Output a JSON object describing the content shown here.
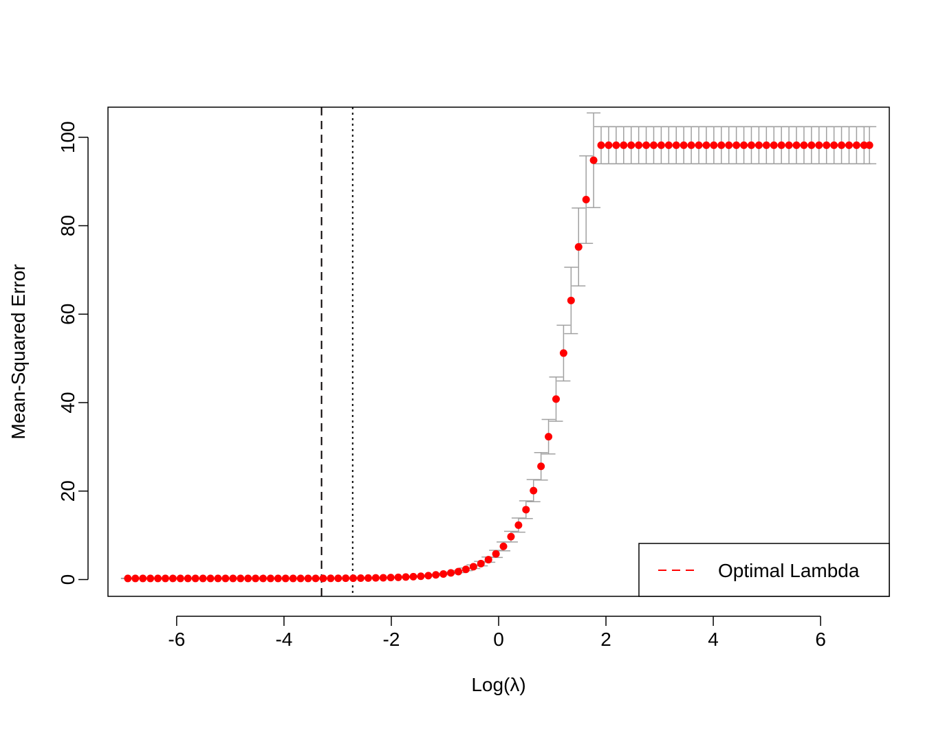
{
  "chart_data": {
    "type": "scatter",
    "title": "",
    "xlabel": "Log(λ)",
    "ylabel": "Mean-Squared Error",
    "xlim": [
      -7.28,
      7.28
    ],
    "ylim": [
      -3.8,
      106.8
    ],
    "x_ticks": [
      -6,
      -4,
      -2,
      0,
      2,
      4,
      6
    ],
    "y_ticks": [
      0,
      20,
      40,
      60,
      80,
      100
    ],
    "grid": false,
    "legend": {
      "position": "bottom-right",
      "entries": [
        {
          "label": "Optimal Lambda",
          "color": "#ff0000",
          "line_style": "dashed"
        }
      ]
    },
    "vlines": [
      {
        "x": -3.3,
        "color": "#ff0000",
        "style": "dashed",
        "label": "Optimal Lambda"
      },
      {
        "x": -3.3,
        "color": "#000000",
        "style": "dashed"
      },
      {
        "x": -2.72,
        "color": "#000000",
        "style": "dotted"
      }
    ],
    "colors": {
      "points": "#ff0000",
      "error_bars": "#a0a0a0"
    },
    "series": [
      {
        "x": [
          -6.91,
          -6.77,
          -6.63,
          -6.49,
          -6.35,
          -6.21,
          -6.07,
          -5.93,
          -5.79,
          -5.65,
          -5.51,
          -5.37,
          -5.23,
          -5.09,
          -4.95,
          -4.81,
          -4.67,
          -4.53,
          -4.39,
          -4.25,
          -4.11,
          -3.97,
          -3.83,
          -3.69,
          -3.55,
          -3.41,
          -3.27,
          -3.13,
          -2.99,
          -2.85,
          -2.71,
          -2.57,
          -2.43,
          -2.29,
          -2.15,
          -2.01,
          -1.87,
          -1.73,
          -1.59,
          -1.45,
          -1.31,
          -1.17,
          -1.03,
          -0.89,
          -0.75,
          -0.61,
          -0.47,
          -0.33,
          -0.19,
          -0.05,
          0.09,
          0.23,
          0.37,
          0.51,
          0.65,
          0.79,
          0.93,
          1.07,
          1.21,
          1.35,
          1.49,
          1.63,
          1.77,
          1.91,
          2.05,
          2.19,
          2.33,
          2.47,
          2.61,
          2.75,
          2.89,
          3.03,
          3.17,
          3.31,
          3.45,
          3.59,
          3.73,
          3.87,
          4.01,
          4.15,
          4.29,
          4.43,
          4.57,
          4.71,
          4.85,
          4.99,
          5.13,
          5.27,
          5.41,
          5.55,
          5.69,
          5.83,
          5.97,
          6.11,
          6.25,
          6.39,
          6.53,
          6.67,
          6.81,
          6.91
        ],
        "y": [
          0.25,
          0.25,
          0.25,
          0.25,
          0.25,
          0.25,
          0.25,
          0.25,
          0.25,
          0.25,
          0.25,
          0.25,
          0.25,
          0.25,
          0.25,
          0.25,
          0.25,
          0.25,
          0.25,
          0.25,
          0.25,
          0.25,
          0.25,
          0.25,
          0.25,
          0.26,
          0.26,
          0.27,
          0.28,
          0.29,
          0.3,
          0.32,
          0.34,
          0.37,
          0.4,
          0.45,
          0.5,
          0.57,
          0.65,
          0.75,
          0.88,
          1.05,
          1.25,
          1.5,
          1.8,
          2.3,
          2.9,
          3.6,
          4.5,
          5.8,
          7.5,
          9.7,
          12.3,
          15.8,
          20.1,
          25.6,
          32.3,
          40.8,
          51.2,
          63.1,
          75.2,
          85.9,
          94.8,
          98.2,
          98.2,
          98.2,
          98.2,
          98.2,
          98.2,
          98.2,
          98.2,
          98.2,
          98.2,
          98.2,
          98.2,
          98.2,
          98.2,
          98.2,
          98.2,
          98.2,
          98.2,
          98.2,
          98.2,
          98.2,
          98.2,
          98.2,
          98.2,
          98.2,
          98.2,
          98.2,
          98.2,
          98.2,
          98.2,
          98.2,
          98.2,
          98.2,
          98.2,
          98.2,
          98.2,
          98.2
        ],
        "y_upper": [
          0.3,
          0.3,
          0.3,
          0.3,
          0.3,
          0.3,
          0.3,
          0.3,
          0.3,
          0.3,
          0.3,
          0.3,
          0.3,
          0.3,
          0.3,
          0.3,
          0.3,
          0.3,
          0.3,
          0.3,
          0.3,
          0.3,
          0.3,
          0.3,
          0.3,
          0.31,
          0.31,
          0.32,
          0.33,
          0.34,
          0.35,
          0.37,
          0.39,
          0.42,
          0.46,
          0.51,
          0.57,
          0.65,
          0.74,
          0.85,
          1.0,
          1.2,
          1.42,
          1.7,
          2.05,
          2.6,
          3.3,
          4.1,
          5.1,
          6.6,
          8.5,
          10.9,
          13.9,
          17.8,
          22.6,
          28.7,
          36.2,
          45.8,
          57.5,
          70.6,
          84.0,
          95.8,
          105.5,
          102.4,
          102.4,
          102.4,
          102.4,
          102.4,
          102.4,
          102.4,
          102.4,
          102.4,
          102.4,
          102.4,
          102.4,
          102.4,
          102.4,
          102.4,
          102.4,
          102.4,
          102.4,
          102.4,
          102.4,
          102.4,
          102.4,
          102.4,
          102.4,
          102.4,
          102.4,
          102.4,
          102.4,
          102.4,
          102.4,
          102.4,
          102.4,
          102.4,
          102.4,
          102.4,
          102.4,
          102.4
        ],
        "y_lower": [
          0.2,
          0.2,
          0.2,
          0.2,
          0.2,
          0.2,
          0.2,
          0.2,
          0.2,
          0.2,
          0.2,
          0.2,
          0.2,
          0.2,
          0.2,
          0.2,
          0.2,
          0.2,
          0.2,
          0.2,
          0.2,
          0.2,
          0.2,
          0.2,
          0.2,
          0.21,
          0.21,
          0.22,
          0.23,
          0.24,
          0.25,
          0.27,
          0.29,
          0.32,
          0.34,
          0.39,
          0.43,
          0.49,
          0.56,
          0.65,
          0.76,
          0.9,
          1.08,
          1.3,
          1.55,
          2.0,
          2.5,
          3.1,
          3.9,
          5.0,
          6.5,
          8.5,
          10.7,
          13.8,
          17.6,
          22.5,
          28.4,
          35.8,
          44.9,
          55.6,
          66.4,
          76.0,
          84.1,
          94.0,
          94.0,
          94.0,
          94.0,
          94.0,
          94.0,
          94.0,
          94.0,
          94.0,
          94.0,
          94.0,
          94.0,
          94.0,
          94.0,
          94.0,
          94.0,
          94.0,
          94.0,
          94.0,
          94.0,
          94.0,
          94.0,
          94.0,
          94.0,
          94.0,
          94.0,
          94.0,
          94.0,
          94.0,
          94.0,
          94.0,
          94.0,
          94.0,
          94.0,
          94.0,
          94.0,
          94.0
        ]
      }
    ]
  }
}
